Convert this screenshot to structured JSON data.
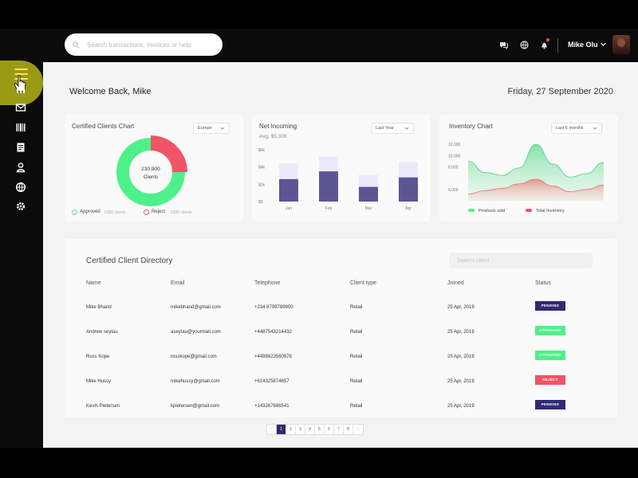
{
  "search": {
    "placeholder": "Search transactions, invoices or help"
  },
  "user": {
    "name": "Mike Olu"
  },
  "welcome": "Welcome Back, Mike",
  "date": "Friday, 27 September 2020",
  "colors": {
    "approved": "#4ef08a",
    "reject": "#f25467",
    "pending": "#2f2a73",
    "bar_dark": "#5d5694",
    "bar_light": "#ece9fa",
    "sidebar": "#0b0b0b",
    "accent_blob": "#9b9a17"
  },
  "clients_card": {
    "title": "Certified Clients Chart",
    "dropdown": "Europe",
    "center_value": "230,900",
    "center_label": "Clients",
    "legend": [
      {
        "label": "Approved",
        "sub": "6390 clients"
      },
      {
        "label": "Reject",
        "sub": "6390 clients"
      }
    ]
  },
  "net_card": {
    "title": "Net Incoming",
    "subtitle": "Avg. $5,309",
    "dropdown": "Last Year"
  },
  "inventory_card": {
    "title": "Inventory Chart",
    "dropdown": "Last 6 months"
  },
  "chart_data": [
    {
      "type": "pie",
      "categories": [
        "Approved",
        "Reject"
      ],
      "values": [
        75,
        25
      ]
    },
    {
      "type": "bar",
      "categories": [
        "Jan",
        "Feb",
        "Mar",
        "Apr"
      ],
      "yticks": [
        "$0",
        "$2k",
        "$4k",
        "$6k"
      ],
      "ylim": [
        0,
        6
      ],
      "series": [
        {
          "values": [
            2.6,
            3.5,
            1.7,
            2.8
          ]
        },
        {
          "values": [
            4.4,
            5.2,
            3.1,
            4.6
          ]
        }
      ]
    },
    {
      "type": "area",
      "yticks": [
        "4,000",
        "8,000",
        "10,000",
        "12,000"
      ],
      "ylim": [
        2000,
        13000
      ],
      "series": [
        {
          "name": "Products sold",
          "values": [
            9000,
            7000,
            6500,
            7800,
            12000,
            8500,
            6200,
            6800,
            8800
          ]
        },
        {
          "name": "Total Inventory",
          "values": [
            3200,
            3800,
            4200,
            5000,
            5800,
            4600,
            3600,
            4000,
            4800
          ]
        }
      ]
    }
  ],
  "table": {
    "title": "Certified Client Directory",
    "search_placeholder": "Search client",
    "headers": [
      "Name",
      "Email",
      "Telephone",
      "Client type",
      "Joined",
      "Status"
    ],
    "rows": [
      {
        "name": "Mike Bhand",
        "email": "mikebhand@gmail.com",
        "phone": "+234 8799789900",
        "type": "Retail",
        "joined": "25 Apr, 2019",
        "status": "PENDING",
        "status_color": "#2f2a73"
      },
      {
        "name": "Andrew seytau",
        "email": "aseytau@yourmail.com",
        "phone": "+4487543214432",
        "type": "Retail",
        "joined": "25 Apr, 2019",
        "status": "APPROVED",
        "status_color": "#4ef08a"
      },
      {
        "name": "Ross Kope",
        "email": "rosskope@gmail.com",
        "phone": "+4498623560878",
        "type": "Retail",
        "joined": "25 Apr, 2019",
        "status": "APPROVED",
        "status_color": "#4ef08a"
      },
      {
        "name": "Mike Hussy",
        "email": "mikehussy@gmail.com",
        "phone": "+614325874657",
        "type": "Retail",
        "joined": "25 Apr, 2019",
        "status": "REJECT",
        "status_color": "#f25467"
      },
      {
        "name": "Kevin Pietersen",
        "email": "kpietersen@gmail.com",
        "phone": "+143267686541",
        "type": "Retail",
        "joined": "25 Apr, 2019",
        "status": "PENDING",
        "status_color": "#2f2a73"
      }
    ]
  },
  "pagination": {
    "pages": [
      "1",
      "2",
      "3",
      "4",
      "5",
      "6",
      "7",
      "8"
    ],
    "active": "1"
  }
}
